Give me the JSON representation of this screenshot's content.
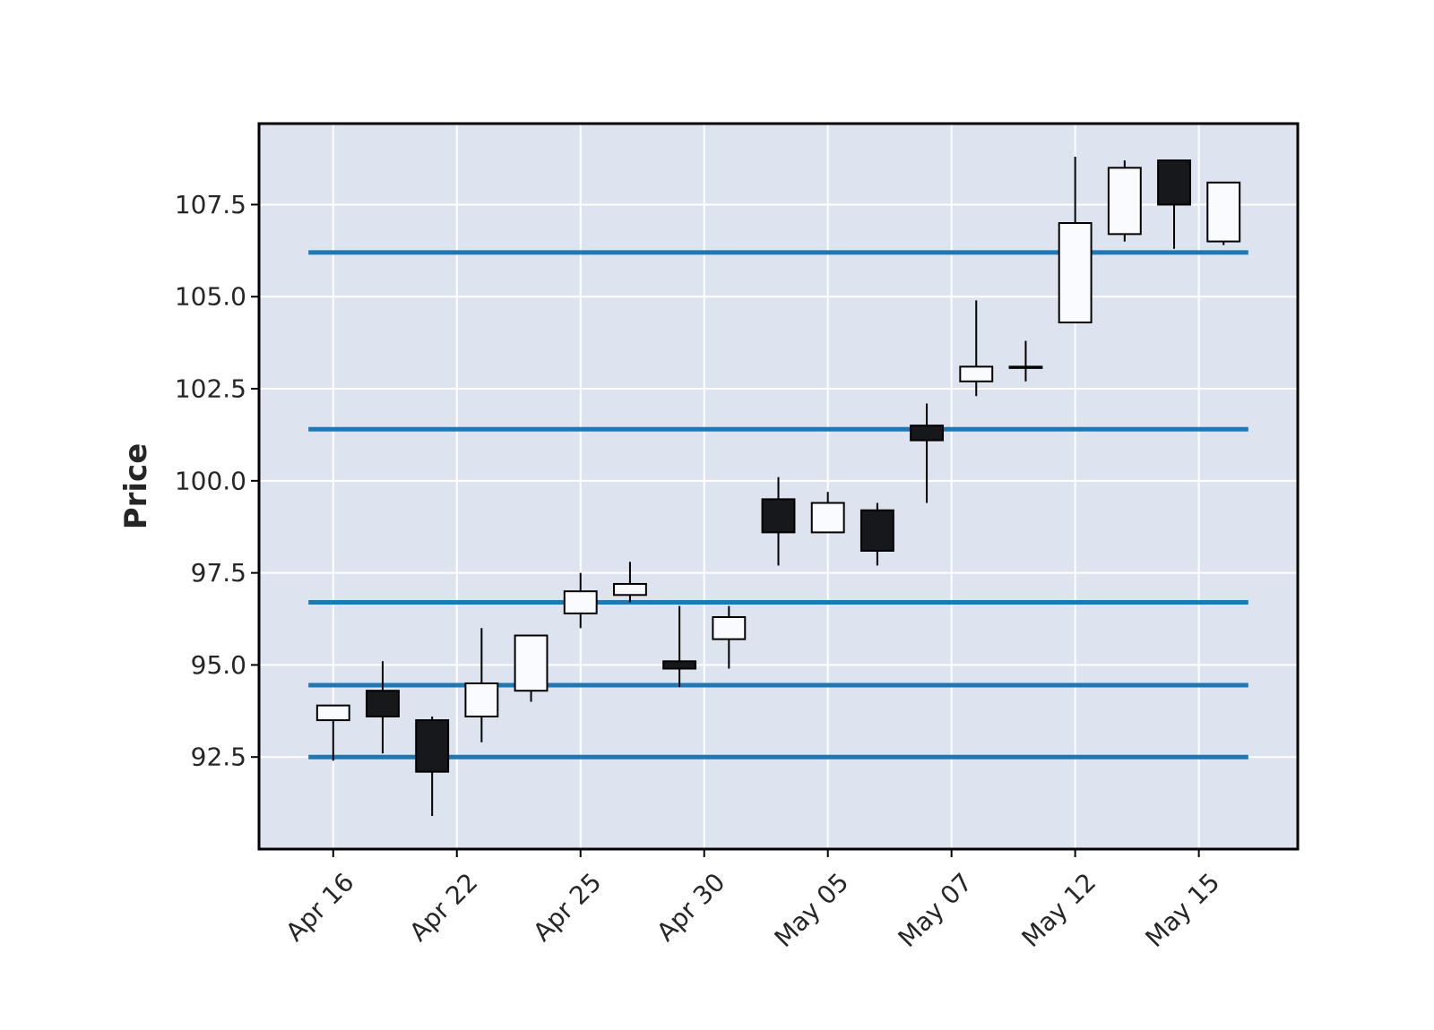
{
  "chart_data": {
    "type": "candlestick",
    "title": "",
    "xlabel": "",
    "ylabel": "Price",
    "ylim": [
      90.0,
      109.7
    ],
    "yticks": [
      92.5,
      95.0,
      97.5,
      100.0,
      102.5,
      105.0,
      107.5
    ],
    "ytick_labels": [
      "92.5",
      "95.0",
      "97.5",
      "100.0",
      "102.5",
      "105.0",
      "107.5"
    ],
    "xtick_labels": [
      "Apr 16",
      "Apr 22",
      "Apr 25",
      "Apr 30",
      "May 05",
      "May 07",
      "May 12",
      "May 15"
    ],
    "xtick_index": [
      0,
      2.5,
      5,
      7.5,
      10,
      12.5,
      15,
      17.5
    ],
    "grid": true,
    "colors": {
      "background": "#dde3ef",
      "grid": "#ffffff",
      "up_body": "#f9fbfe",
      "down_body": "#17181c",
      "edge": "#000000",
      "hline": "#1f77b4"
    },
    "candles": [
      {
        "open": 93.5,
        "high": 93.9,
        "low": 92.4,
        "close": 93.9
      },
      {
        "open": 94.3,
        "high": 95.1,
        "low": 92.6,
        "close": 93.6
      },
      {
        "open": 93.5,
        "high": 93.6,
        "low": 90.9,
        "close": 92.1
      },
      {
        "open": 93.6,
        "high": 96.0,
        "low": 92.9,
        "close": 94.5
      },
      {
        "open": 94.3,
        "high": 95.8,
        "low": 94.0,
        "close": 95.8
      },
      {
        "open": 96.4,
        "high": 97.5,
        "low": 96.0,
        "close": 97.0
      },
      {
        "open": 96.9,
        "high": 97.8,
        "low": 96.7,
        "close": 97.2
      },
      {
        "open": 95.1,
        "high": 96.6,
        "low": 94.4,
        "close": 94.9
      },
      {
        "open": 95.7,
        "high": 96.6,
        "low": 94.9,
        "close": 96.3
      },
      {
        "open": 99.5,
        "high": 100.1,
        "low": 97.7,
        "close": 98.6
      },
      {
        "open": 98.6,
        "high": 99.7,
        "low": 98.6,
        "close": 99.4
      },
      {
        "open": 99.2,
        "high": 99.4,
        "low": 97.7,
        "close": 98.1
      },
      {
        "open": 101.5,
        "high": 102.1,
        "low": 99.4,
        "close": 101.1
      },
      {
        "open": 102.7,
        "high": 104.9,
        "low": 102.3,
        "close": 103.1
      },
      {
        "open": 103.1,
        "high": 103.8,
        "low": 102.7,
        "close": 103.1
      },
      {
        "open": 104.3,
        "high": 108.8,
        "low": 104.3,
        "close": 107.0
      },
      {
        "open": 106.7,
        "high": 108.7,
        "low": 106.5,
        "close": 108.5
      },
      {
        "open": 108.7,
        "high": 108.7,
        "low": 106.3,
        "close": 107.5
      },
      {
        "open": 106.5,
        "high": 108.1,
        "low": 106.4,
        "close": 108.1
      }
    ],
    "hlines": [
      106.2,
      101.4,
      96.7,
      94.45,
      92.5
    ]
  }
}
